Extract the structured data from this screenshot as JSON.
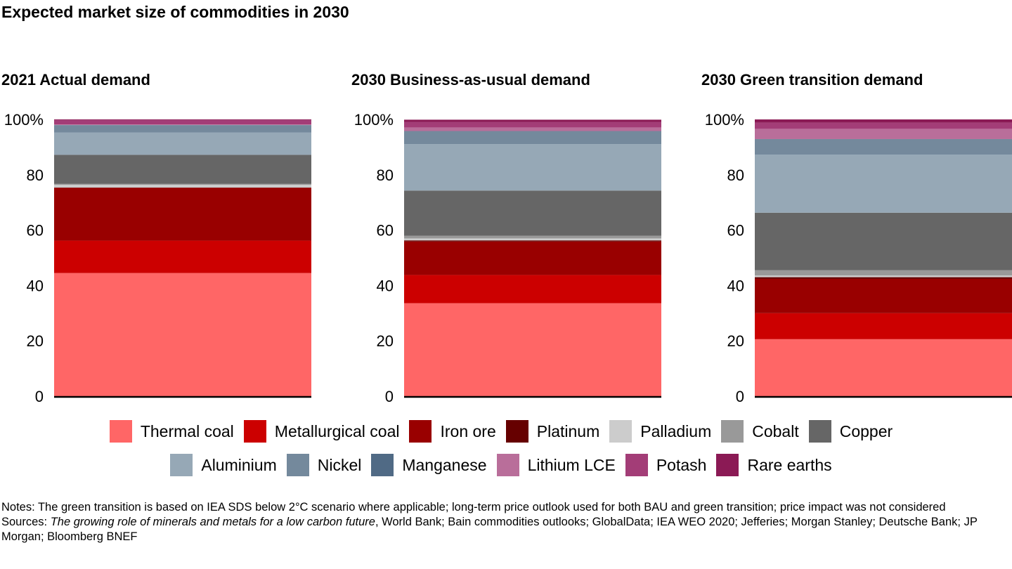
{
  "chart_data": [
    {
      "type": "bar",
      "stacked": true,
      "title": "2021 Actual demand",
      "ylim": [
        0,
        100
      ],
      "yticks": [
        "0",
        "20",
        "40",
        "60",
        "80",
        "100%"
      ],
      "values": [
        44.5,
        11.7,
        19.1,
        0.1,
        1.0,
        0.3,
        10.5,
        8.1,
        2.6,
        0.1,
        0.2,
        1.5,
        0.3
      ]
    },
    {
      "type": "bar",
      "stacked": true,
      "title": "2030 Business-as-usual demand",
      "ylim": [
        0,
        100
      ],
      "yticks": [
        "0",
        "20",
        "40",
        "60",
        "80",
        "100%"
      ],
      "values": [
        33.6,
        10.2,
        12.1,
        0.4,
        0.7,
        1.0,
        16.3,
        16.8,
        4.6,
        0.1,
        1.3,
        2.0,
        0.8
      ]
    },
    {
      "type": "bar",
      "stacked": true,
      "title": "2030 Green transition demand",
      "ylim": [
        0,
        100
      ],
      "yticks": [
        "0",
        "20",
        "40",
        "60",
        "80",
        "100%"
      ],
      "values": [
        20.6,
        9.4,
        12.4,
        0.6,
        0.6,
        1.9,
        20.8,
        21.0,
        5.5,
        0.1,
        3.7,
        2.2,
        1.2
      ]
    }
  ],
  "series": [
    {
      "name": "Thermal coal",
      "color": "#FF6666"
    },
    {
      "name": "Metallurgical coal",
      "color": "#CC0000"
    },
    {
      "name": "Iron ore",
      "color": "#990000"
    },
    {
      "name": "Platinum",
      "color": "#660000"
    },
    {
      "name": "Palladium",
      "color": "#CCCCCC"
    },
    {
      "name": "Cobalt",
      "color": "#999999"
    },
    {
      "name": "Copper",
      "color": "#666666"
    },
    {
      "name": "Aluminium",
      "color": "#96A8B6"
    },
    {
      "name": "Nickel",
      "color": "#74899C"
    },
    {
      "name": "Manganese",
      "color": "#506A85"
    },
    {
      "name": "Lithium LCE",
      "color": "#B96E9A"
    },
    {
      "name": "Potash",
      "color": "#A33D77"
    },
    {
      "name": "Rare earths",
      "color": "#8B1A55"
    }
  ],
  "title": "Expected market size of commodities in 2030",
  "notes": "Notes: The green transition is based on IEA SDS below 2°C scenario where applicable; long-term price outlook used for both BAU and green transition; price impact was not considered",
  "sources_prefix": "Sources: ",
  "sources_italic": "The growing role of minerals and metals for a low carbon future",
  "sources_rest": ", World Bank; Bain commodities outlooks; GlobalData; IEA WEO 2020; Jefferies; Morgan Stanley; Deutsche Bank; JP Morgan; Bloomberg BNEF"
}
